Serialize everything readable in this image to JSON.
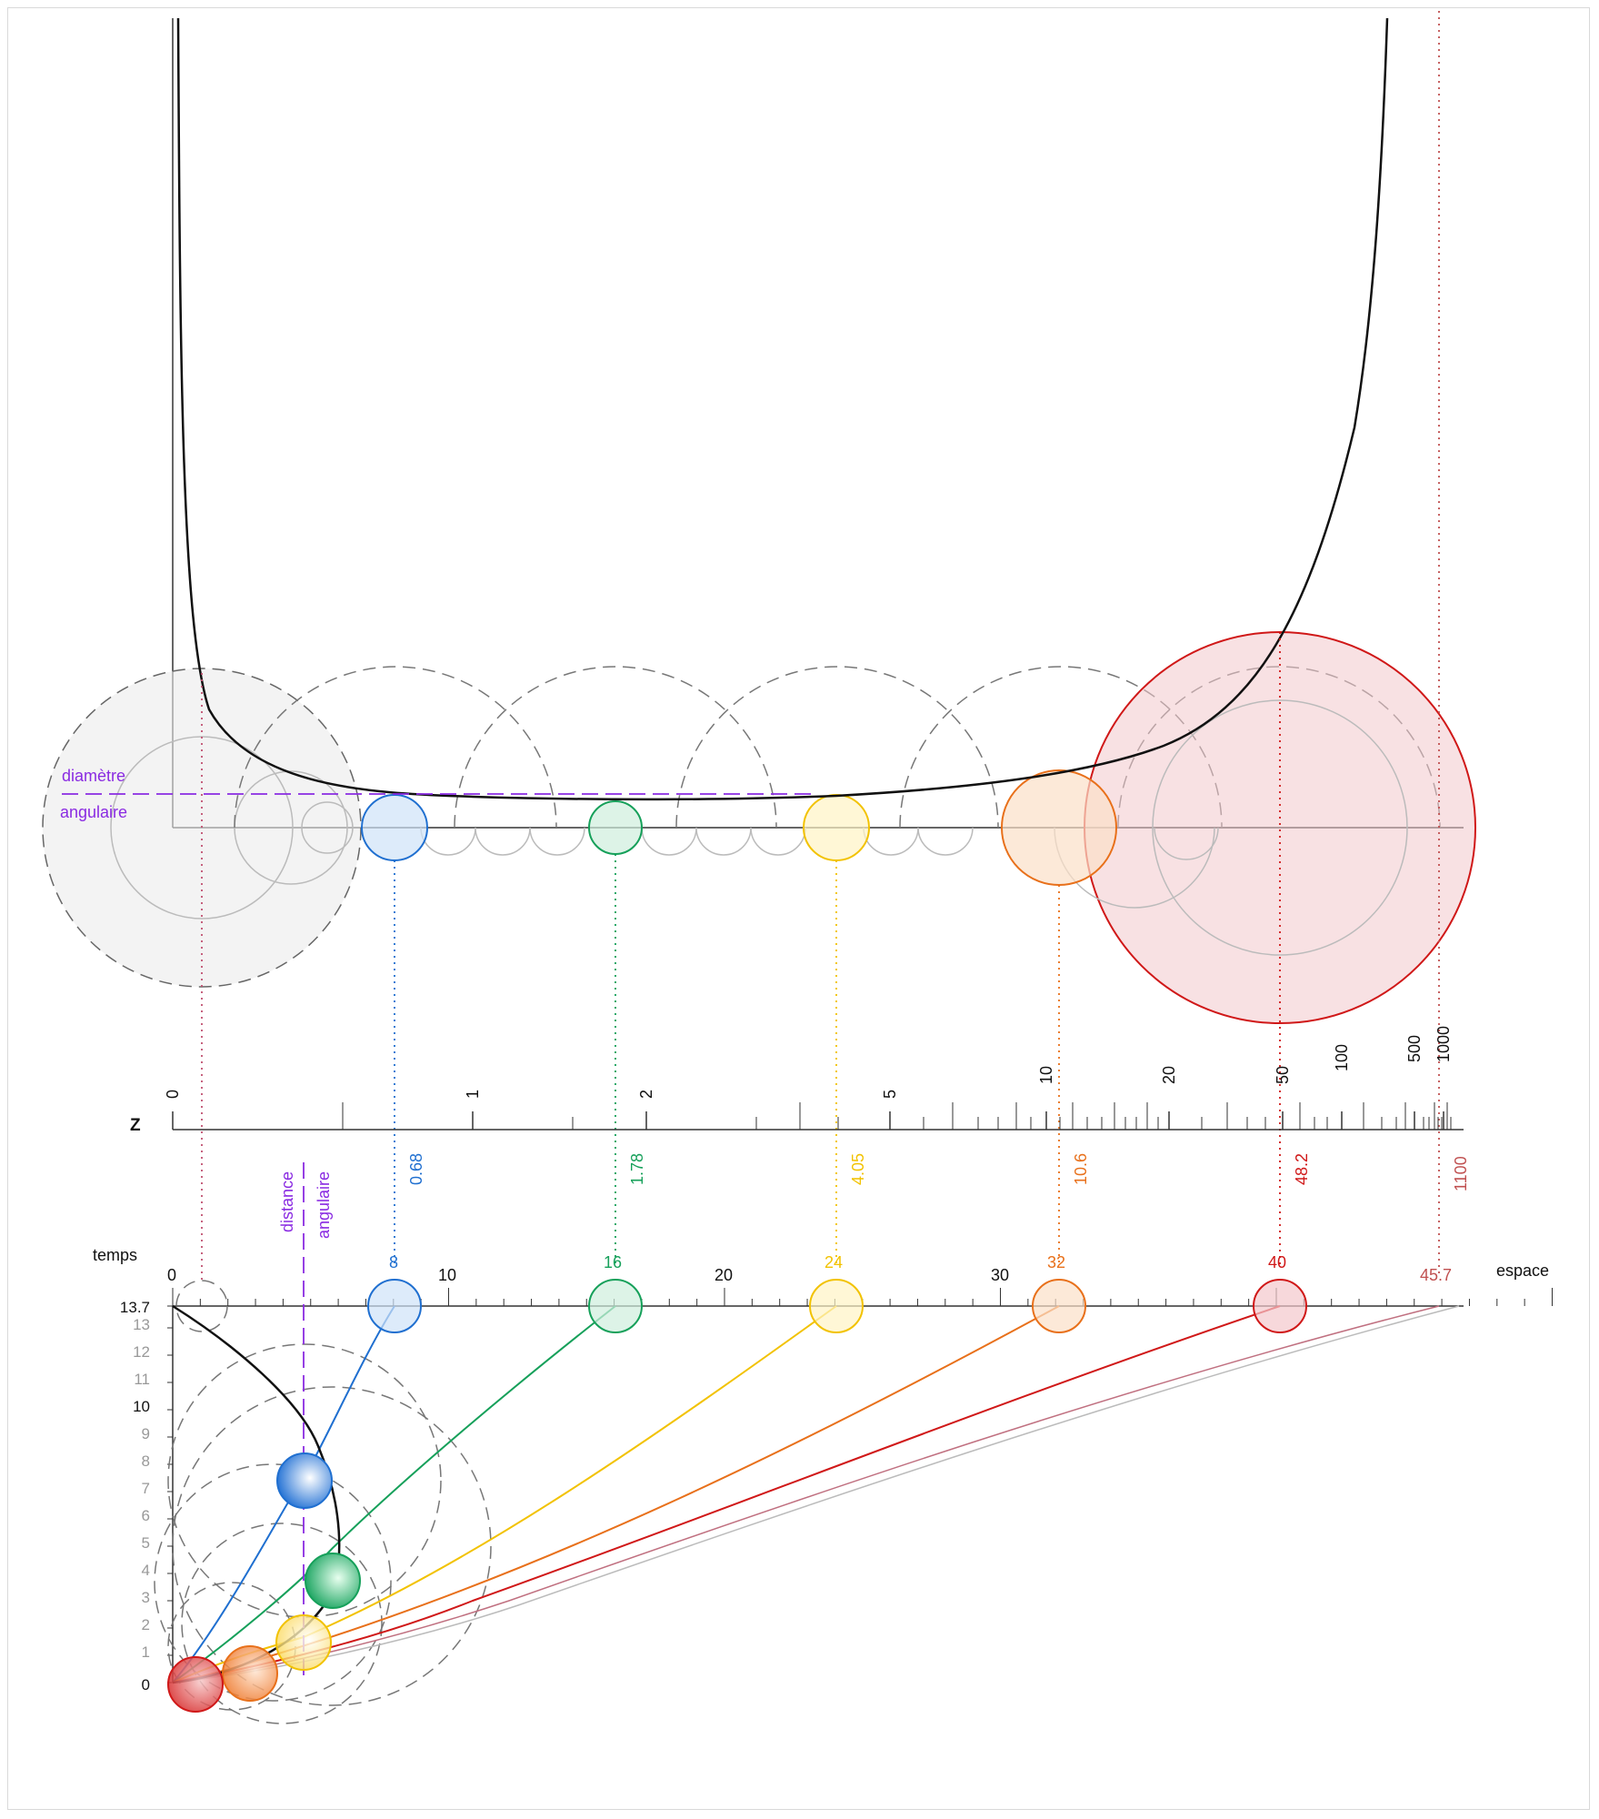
{
  "top_labels": {
    "angular_diameter_line1": "diamètre",
    "angular_diameter_line2": "angulaire"
  },
  "redshift": {
    "axis_label": "Z",
    "ticks": [
      "0",
      "1",
      "2",
      "5",
      "10",
      "20",
      "50",
      "100",
      "500",
      "1000"
    ],
    "markers": [
      {
        "value": "0.68",
        "color": "#1f6fd0"
      },
      {
        "value": "1.78",
        "color": "#16a05a"
      },
      {
        "value": "4.05",
        "color": "#f2c200"
      },
      {
        "value": "10.6",
        "color": "#e8701a"
      },
      {
        "value": "48.2",
        "color": "#d01818"
      },
      {
        "value": "1100",
        "color": "#c05050"
      }
    ]
  },
  "bottom": {
    "time_label": "temps",
    "space_label": "espace",
    "angular_distance_line1": "distance",
    "angular_distance_line2": "angulaire",
    "space_ticks": [
      "0",
      "10",
      "20",
      "30"
    ],
    "space_markers": [
      {
        "value": "8",
        "color": "#1f6fd0"
      },
      {
        "value": "16",
        "color": "#16a05a"
      },
      {
        "value": "24",
        "color": "#f2c200"
      },
      {
        "value": "32",
        "color": "#e8701a"
      },
      {
        "value": "40",
        "color": "#d01818"
      },
      {
        "value": "45.7",
        "color": "#c05050"
      }
    ],
    "time_ticks": [
      "13.7",
      "13",
      "12",
      "11",
      "10",
      "9",
      "8",
      "7",
      "6",
      "5",
      "4",
      "3",
      "2",
      "1",
      "0"
    ]
  },
  "colors": {
    "blue": "#1f6fd0",
    "green": "#16a05a",
    "yellow": "#f2c200",
    "orange": "#e8701a",
    "red": "#d01818",
    "purple": "#8a2be2",
    "gray": "#999999"
  }
}
